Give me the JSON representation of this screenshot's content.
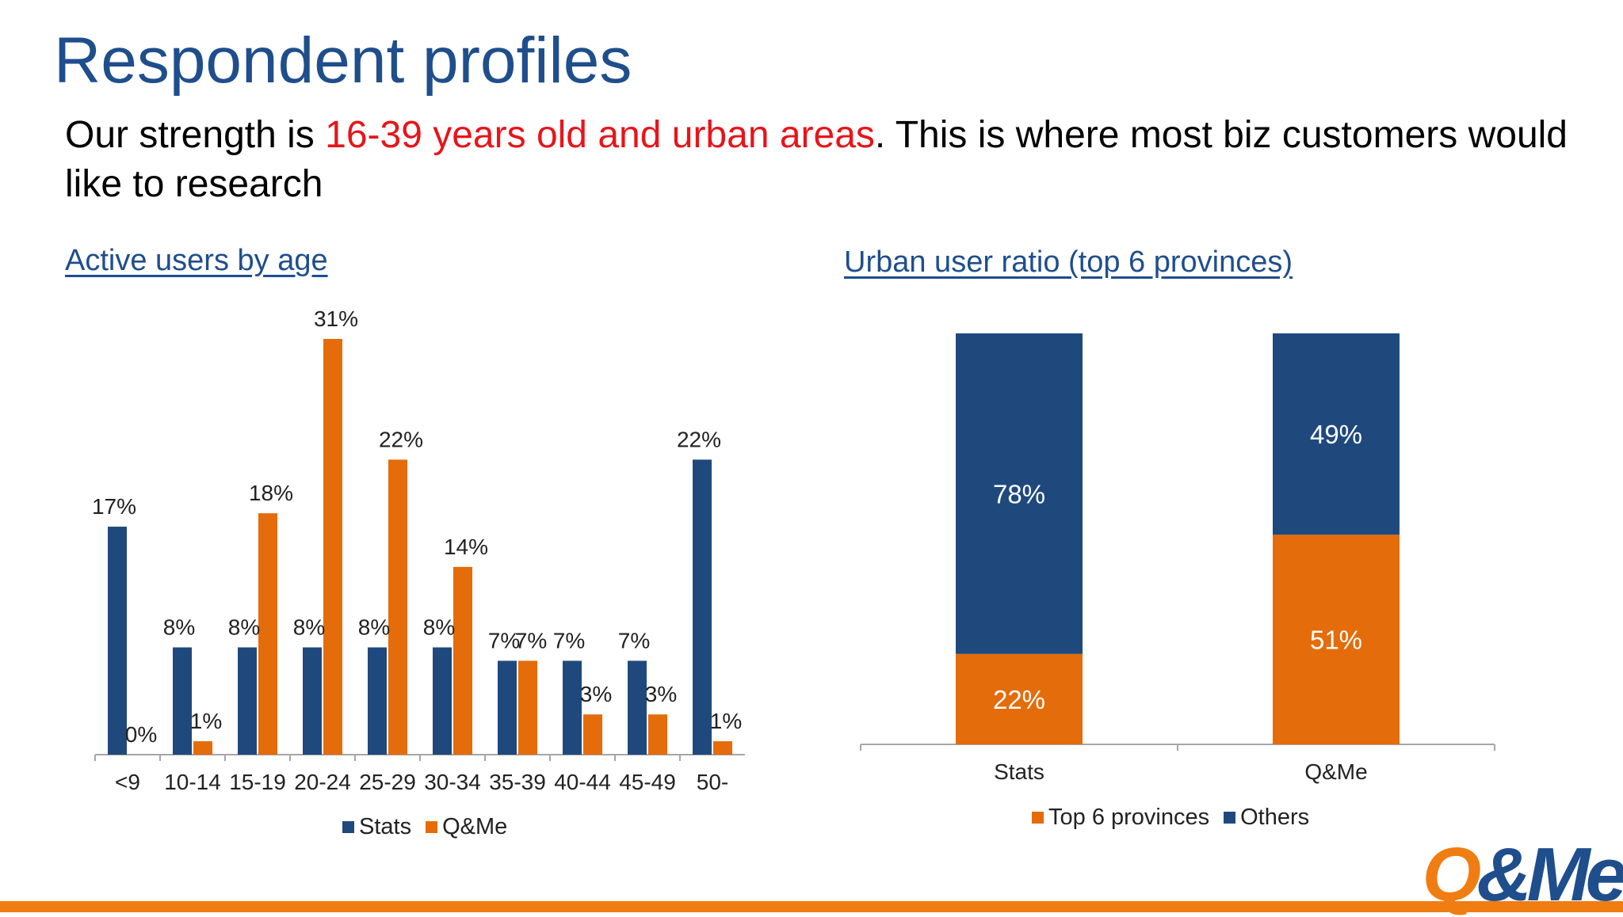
{
  "slide": {
    "title": "Respondent profiles",
    "subtitle_pre": "Our strength is ",
    "subtitle_highlight": "16-39 years old and urban areas",
    "subtitle_post": ". This is where most biz customers would like to research",
    "logo_text_a": "Q",
    "logo_text_b": "&Me"
  },
  "colors": {
    "stats": "#1f497d",
    "qme": "#e46c0a",
    "title": "#1f4e8c",
    "highlight": "#e8141b",
    "brand_orange": "#f07d12"
  },
  "chart_data": [
    {
      "type": "bar",
      "title": "Active users by age",
      "categories": [
        "<9",
        "10-14",
        "15-19",
        "20-24",
        "25-29",
        "30-34",
        "35-39",
        "40-44",
        "45-49",
        "50-"
      ],
      "series": [
        {
          "name": "Stats",
          "values": [
            17,
            8,
            8,
            8,
            8,
            8,
            7,
            7,
            7,
            22
          ],
          "labels": [
            "17%",
            "8%",
            "8%",
            "8%",
            "8%",
            "8%",
            "7%",
            "7%",
            "7%",
            "22%"
          ]
        },
        {
          "name": "Q&Me",
          "values": [
            0,
            1,
            18,
            31,
            22,
            14,
            7,
            3,
            3,
            1
          ],
          "labels": [
            "0%",
            "1%",
            "18%",
            "31%",
            "22%",
            "14%",
            "7%",
            "3%",
            "3%",
            "1%"
          ]
        }
      ],
      "ylim": [
        0,
        31
      ],
      "legend": "bottom",
      "grid": false
    },
    {
      "type": "bar",
      "stacked": true,
      "title": "Urban user ratio (top 6 provinces)",
      "categories": [
        "Stats",
        "Q&Me"
      ],
      "series": [
        {
          "name": "Top 6 provinces",
          "values": [
            22,
            51
          ],
          "labels": [
            "22%",
            "51%"
          ]
        },
        {
          "name": "Others",
          "values": [
            78,
            49
          ],
          "labels": [
            "78%",
            "49%"
          ]
        }
      ],
      "ylim": [
        0,
        100
      ],
      "legend": "bottom",
      "grid": false
    }
  ]
}
